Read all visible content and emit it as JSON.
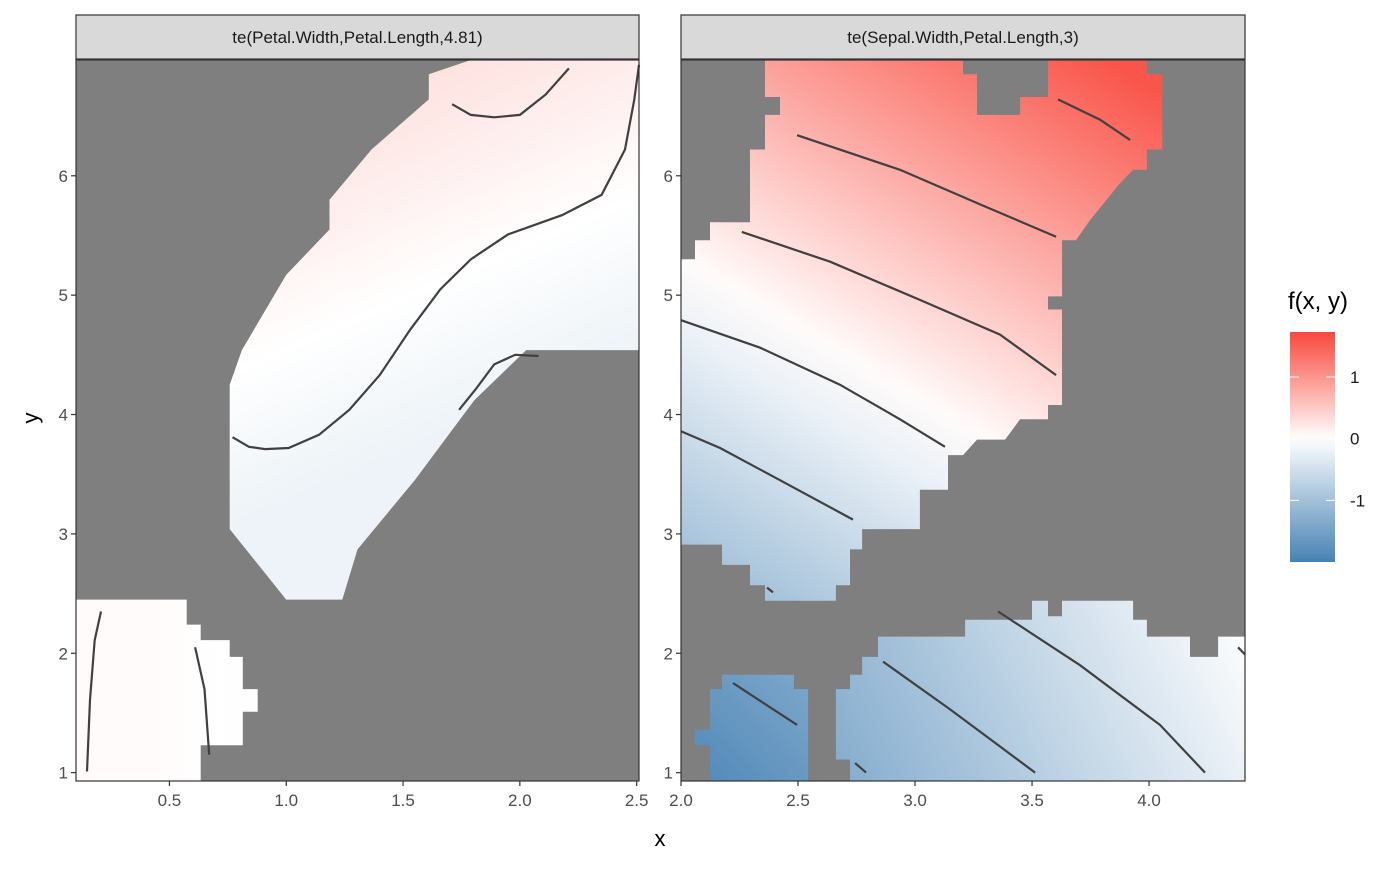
{
  "chart_data": {
    "type": "heatmap",
    "xlabel": "x",
    "ylabel": "y",
    "legend": {
      "title": "f(x, y)",
      "placement": "right",
      "range": [
        -2.0,
        1.73
      ],
      "ticks": [
        1,
        0,
        -1
      ],
      "tick_labels": [
        "1",
        "0",
        "-1"
      ],
      "low_color": "#4682b4",
      "mid_color": "#ffffff",
      "high_color": "#f8483c"
    },
    "na_color": "#7f7f7f",
    "contour_color": "#404040",
    "panels": [
      {
        "strip": "te(Petal.Width,Petal.Length,4.81)",
        "xlim": [
          0.1,
          2.51
        ],
        "ylim": [
          0.93,
          6.97
        ],
        "xticks": [
          0.5,
          1.0,
          1.5,
          2.0,
          2.5
        ],
        "xtick_labels": [
          "0.5",
          "1.0",
          "1.5",
          "2.0",
          "2.5"
        ],
        "yticks": [
          1,
          2,
          3,
          4,
          5,
          6
        ],
        "ytick_labels": [
          "1",
          "2",
          "3",
          "4",
          "5",
          "6"
        ],
        "regions": [
          {
            "points": [
              [
                0.758,
                4.25
              ],
              [
                0.758,
                3.04
              ],
              [
                1.0,
                2.45
              ],
              [
                1.24,
                2.45
              ],
              [
                1.305,
                2.87
              ],
              [
                1.55,
                3.45
              ],
              [
                1.805,
                4.12
              ],
              [
                2.027,
                4.54
              ],
              [
                2.51,
                4.54
              ],
              [
                2.51,
                6.97
              ],
              [
                1.79,
                6.97
              ],
              [
                1.61,
                6.85
              ],
              [
                1.61,
                6.64
              ],
              [
                1.365,
                6.22
              ],
              [
                1.185,
                5.8
              ],
              [
                1.185,
                5.55
              ],
              [
                1.0,
                5.17
              ],
              [
                0.81,
                4.54
              ]
            ],
            "gradient": {
              "from": [
                2.1,
                4.2
              ],
              "to": [
                1.5,
                6.9
              ],
              "f_from": -0.2,
              "f_to": 0.3
            }
          },
          {
            "points": [
              [
                0.1,
                2.45
              ],
              [
                0.574,
                2.45
              ],
              [
                0.574,
                2.24
              ],
              [
                0.634,
                2.24
              ],
              [
                0.634,
                2.11
              ],
              [
                0.758,
                2.11
              ],
              [
                0.758,
                1.97
              ],
              [
                0.814,
                1.97
              ],
              [
                0.814,
                1.7
              ],
              [
                0.878,
                1.7
              ],
              [
                0.878,
                1.51
              ],
              [
                0.814,
                1.51
              ],
              [
                0.814,
                1.23
              ],
              [
                0.634,
                1.23
              ],
              [
                0.634,
                0.93
              ],
              [
                0.1,
                0.93
              ]
            ],
            "gradient": {
              "from": [
                0.9,
                1.5
              ],
              "to": [
                0.45,
                1.5
              ],
              "f_from": -0.03,
              "f_to": 0.04
            }
          }
        ],
        "contours": [
          [
            [
              0.77,
              3.81
            ],
            [
              0.84,
              3.73
            ],
            [
              0.91,
              3.71
            ],
            [
              1.01,
              3.72
            ],
            [
              1.14,
              3.83
            ],
            [
              1.27,
              4.04
            ],
            [
              1.4,
              4.33
            ],
            [
              1.53,
              4.71
            ],
            [
              1.66,
              5.05
            ],
            [
              1.79,
              5.3
            ],
            [
              1.95,
              5.51
            ],
            [
              2.18,
              5.67
            ],
            [
              2.35,
              5.84
            ],
            [
              2.45,
              6.22
            ],
            [
              2.49,
              6.64
            ],
            [
              2.51,
              6.93
            ]
          ],
          [
            [
              1.71,
              6.6
            ],
            [
              1.79,
              6.51
            ],
            [
              1.89,
              6.49
            ],
            [
              2.0,
              6.51
            ],
            [
              2.11,
              6.68
            ],
            [
              2.21,
              6.9
            ]
          ],
          [
            [
              1.74,
              4.04
            ],
            [
              1.81,
              4.21
            ],
            [
              1.89,
              4.42
            ],
            [
              1.98,
              4.5
            ],
            [
              2.08,
              4.49
            ]
          ],
          [
            [
              0.147,
              1.01
            ],
            [
              0.16,
              1.61
            ],
            [
              0.18,
              2.11
            ],
            [
              0.207,
              2.35
            ]
          ],
          [
            [
              0.61,
              2.05
            ],
            [
              0.65,
              1.7
            ],
            [
              0.67,
              1.15
            ]
          ]
        ]
      },
      {
        "strip": "te(Sepal.Width,Petal.Length,3)",
        "xlim": [
          2.0,
          4.41
        ],
        "ylim": [
          0.93,
          6.97
        ],
        "xticks": [
          2.0,
          2.5,
          3.0,
          3.5,
          4.0
        ],
        "xtick_labels": [
          "2.0",
          "2.5",
          "3.0",
          "3.5",
          "4.0"
        ],
        "yticks": [
          1,
          2,
          3,
          4,
          5,
          6
        ],
        "ytick_labels": [
          "1",
          "2",
          "3",
          "4",
          "5",
          "6"
        ],
        "regions": [
          {
            "points": [
              [
                2.359,
                6.97
              ],
              [
                3.205,
                6.97
              ],
              [
                3.205,
                6.85
              ],
              [
                3.265,
                6.85
              ],
              [
                3.265,
                6.51
              ],
              [
                3.449,
                6.51
              ],
              [
                3.449,
                6.66
              ],
              [
                3.568,
                6.66
              ],
              [
                3.568,
                6.97
              ],
              [
                3.991,
                6.97
              ],
              [
                3.991,
                6.85
              ],
              [
                4.056,
                6.85
              ],
              [
                4.056,
                6.22
              ],
              [
                3.991,
                6.22
              ],
              [
                3.991,
                6.05
              ],
              [
                3.932,
                6.05
              ],
              [
                3.868,
                5.92
              ],
              [
                3.803,
                5.76
              ],
              [
                3.748,
                5.63
              ],
              [
                3.688,
                5.46
              ],
              [
                3.628,
                5.46
              ],
              [
                3.628,
                4.99
              ],
              [
                3.568,
                4.99
              ],
              [
                3.568,
                4.88
              ],
              [
                3.628,
                4.88
              ],
              [
                3.628,
                4.08
              ],
              [
                3.568,
                4.08
              ],
              [
                3.568,
                3.96
              ],
              [
                3.449,
                3.96
              ],
              [
                3.385,
                3.79
              ],
              [
                3.265,
                3.79
              ],
              [
                3.205,
                3.66
              ],
              [
                3.141,
                3.66
              ],
              [
                3.141,
                3.37
              ],
              [
                3.021,
                3.37
              ],
              [
                3.021,
                3.04
              ],
              [
                2.774,
                3.04
              ],
              [
                2.774,
                2.87
              ],
              [
                2.722,
                2.87
              ],
              [
                2.722,
                2.57
              ],
              [
                2.662,
                2.57
              ],
              [
                2.662,
                2.44
              ],
              [
                2.359,
                2.44
              ],
              [
                2.359,
                2.57
              ],
              [
                2.295,
                2.57
              ],
              [
                2.295,
                2.74
              ],
              [
                2.175,
                2.74
              ],
              [
                2.175,
                2.91
              ],
              [
                2.0,
                2.91
              ],
              [
                2.0,
                5.3
              ],
              [
                2.06,
                5.3
              ],
              [
                2.06,
                5.46
              ],
              [
                2.124,
                5.46
              ],
              [
                2.124,
                5.61
              ],
              [
                2.295,
                5.61
              ],
              [
                2.295,
                6.22
              ],
              [
                2.359,
                6.22
              ],
              [
                2.359,
                6.51
              ],
              [
                2.423,
                6.51
              ],
              [
                2.423,
                6.66
              ],
              [
                2.359,
                6.66
              ]
            ],
            "gradient": {
              "from": [
                2.2,
                2.6
              ],
              "to": [
                3.6,
                7.2
              ],
              "f_from": -1.0,
              "f_to": 1.6
            }
          },
          {
            "points": [
              [
                2.842,
                2.14
              ],
              [
                3.214,
                2.14
              ],
              [
                3.214,
                2.28
              ],
              [
                3.5,
                2.28
              ],
              [
                3.5,
                2.44
              ],
              [
                3.568,
                2.44
              ],
              [
                3.568,
                2.31
              ],
              [
                3.628,
                2.31
              ],
              [
                3.628,
                2.44
              ],
              [
                3.932,
                2.44
              ],
              [
                3.932,
                2.28
              ],
              [
                3.991,
                2.28
              ],
              [
                3.991,
                2.14
              ],
              [
                4.175,
                2.14
              ],
              [
                4.175,
                1.97
              ],
              [
                4.295,
                1.97
              ],
              [
                4.295,
                2.14
              ],
              [
                4.41,
                2.14
              ],
              [
                4.41,
                0.93
              ],
              [
                2.722,
                0.93
              ],
              [
                2.722,
                1.11
              ],
              [
                2.662,
                1.11
              ],
              [
                2.662,
                1.7
              ],
              [
                2.722,
                1.7
              ],
              [
                2.722,
                1.82
              ],
              [
                2.774,
                1.82
              ],
              [
                2.774,
                1.97
              ],
              [
                2.842,
                1.97
              ]
            ],
            "gradient": {
              "from": [
                2.7,
                1.0
              ],
              "to": [
                4.3,
                2.5
              ],
              "f_from": -1.3,
              "f_to": -0.05
            }
          },
          {
            "points": [
              [
                2.175,
                1.82
              ],
              [
                2.483,
                1.82
              ],
              [
                2.483,
                1.7
              ],
              [
                2.543,
                1.7
              ],
              [
                2.543,
                0.93
              ],
              [
                2.124,
                0.93
              ],
              [
                2.124,
                1.23
              ],
              [
                2.06,
                1.23
              ],
              [
                2.06,
                1.36
              ],
              [
                2.124,
                1.36
              ],
              [
                2.124,
                1.7
              ],
              [
                2.175,
                1.7
              ]
            ],
            "gradient": {
              "from": [
                2.1,
                0.95
              ],
              "to": [
                2.55,
                1.85
              ],
              "f_from": -1.85,
              "f_to": -1.4
            }
          }
        ],
        "contours": [
          [
            [
              2.496,
              6.34
            ],
            [
              2.936,
              6.05
            ],
            [
              3.278,
              5.76
            ],
            [
              3.603,
              5.49
            ]
          ],
          [
            [
              3.611,
              6.64
            ],
            [
              3.791,
              6.47
            ],
            [
              3.919,
              6.3
            ]
          ],
          [
            [
              2.26,
              5.53
            ],
            [
              2.637,
              5.28
            ],
            [
              3.021,
              4.96
            ],
            [
              3.363,
              4.67
            ],
            [
              3.603,
              4.33
            ]
          ],
          [
            [
              2.0,
              4.79
            ],
            [
              2.338,
              4.56
            ],
            [
              2.679,
              4.25
            ],
            [
              2.936,
              3.96
            ],
            [
              3.128,
              3.73
            ]
          ],
          [
            [
              2.0,
              3.86
            ],
            [
              2.167,
              3.72
            ],
            [
              2.423,
              3.45
            ],
            [
              2.735,
              3.12
            ]
          ],
          [
            [
              2.368,
              2.55
            ],
            [
              2.393,
              2.51
            ]
          ],
          [
            [
              2.222,
              1.75
            ],
            [
              2.496,
              1.4
            ]
          ],
          [
            [
              2.744,
              1.08
            ],
            [
              2.791,
              1.0
            ]
          ],
          [
            [
              2.863,
              1.93
            ],
            [
              3.15,
              1.53
            ],
            [
              3.513,
              1.0
            ]
          ],
          [
            [
              3.355,
              2.35
            ],
            [
              3.705,
              1.9
            ],
            [
              4.047,
              1.4
            ],
            [
              4.239,
              1.0
            ]
          ],
          [
            [
              4.38,
              2.05
            ],
            [
              4.41,
              1.99
            ]
          ]
        ]
      }
    ]
  }
}
